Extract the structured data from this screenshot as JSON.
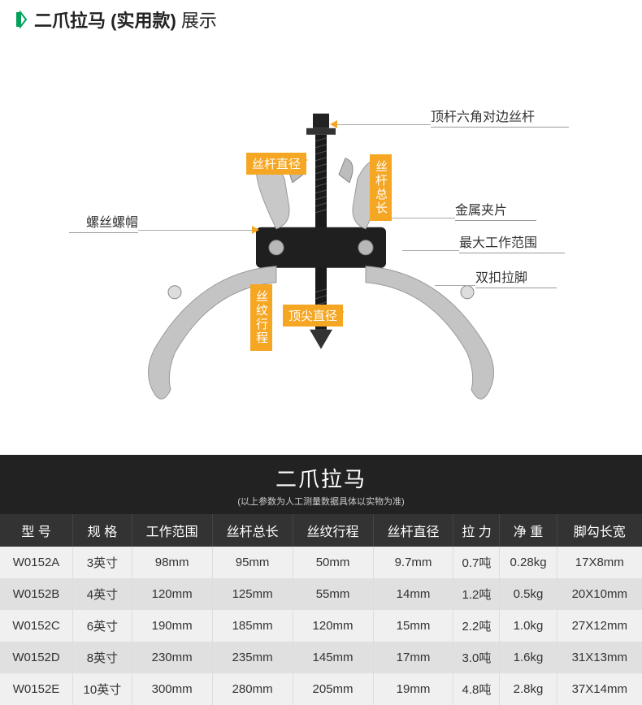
{
  "header": {
    "title_bold": "二爪拉马 (实用款)",
    "title_plain": " 展示",
    "accent_color": "#00a05a"
  },
  "diagram": {
    "labels": {
      "top_right": "顶杆六角对边丝杆",
      "shaft_diameter": "丝杆直径",
      "shaft_total_length": "丝杆总长",
      "metal_clip": "金属夹片",
      "max_range": "最大工作范围",
      "double_leg": "双扣拉脚",
      "screw_nut": "螺丝螺帽",
      "thread_travel": "丝纹行程",
      "tip_diameter": "顶尖直径"
    },
    "callout_bg": "#f5a623"
  },
  "table": {
    "main_title": "二爪拉马",
    "subtitle": "(以上参数为人工测量数据具体以实物为准)",
    "columns": [
      "型 号",
      "规 格",
      "工作范围",
      "丝杆总长",
      "丝纹行程",
      "丝杆直径",
      "拉 力",
      "净 重",
      "脚勾长宽"
    ],
    "rows": [
      [
        "W0152A",
        "3英寸",
        "98mm",
        "95mm",
        "50mm",
        "9.7mm",
        "0.7吨",
        "0.28kg",
        "17X8mm"
      ],
      [
        "W0152B",
        "4英寸",
        "120mm",
        "125mm",
        "55mm",
        "14mm",
        "1.2吨",
        "0.5kg",
        "20X10mm"
      ],
      [
        "W0152C",
        "6英寸",
        "190mm",
        "185mm",
        "120mm",
        "15mm",
        "2.2吨",
        "1.0kg",
        "27X12mm"
      ],
      [
        "W0152D",
        "8英寸",
        "230mm",
        "235mm",
        "145mm",
        "17mm",
        "3.0吨",
        "1.6kg",
        "31X13mm"
      ],
      [
        "W0152E",
        "10英寸",
        "300mm",
        "280mm",
        "205mm",
        "19mm",
        "4.8吨",
        "2.8kg",
        "37X14mm"
      ]
    ],
    "header_bg": "#222222",
    "thead_bg": "#333333",
    "row_odd_bg": "#f0f0f0",
    "row_even_bg": "#e0e0e0"
  }
}
